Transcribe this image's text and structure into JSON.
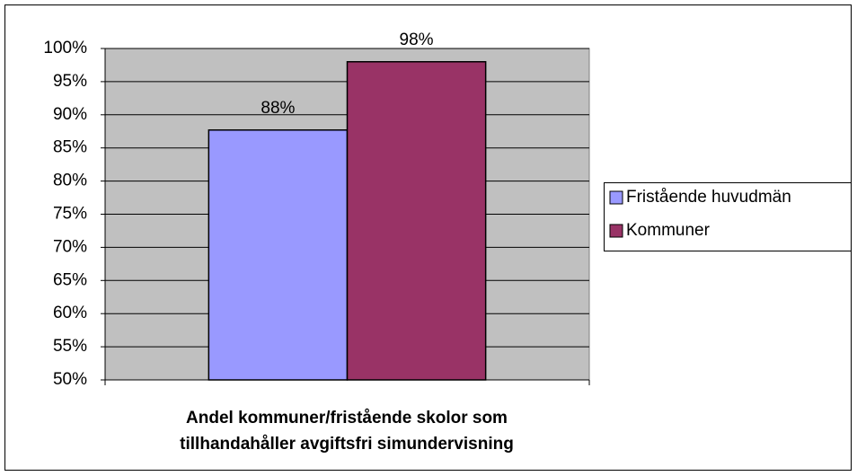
{
  "chart_data": {
    "type": "bar",
    "categories": [
      null
    ],
    "series": [
      {
        "name": "Fristående huvudmän",
        "color": "#9999ff",
        "values": [
          87.7
        ],
        "value_labels": [
          "88%"
        ]
      },
      {
        "name": "Kommuner",
        "color": "#993366",
        "values": [
          98
        ],
        "value_labels": [
          "98%"
        ]
      }
    ],
    "xlabel": [
      "Andel kommuner/fristående skolor som",
      "tillhandahåller avgiftsfri simundervisning"
    ],
    "ylim": [
      50,
      100
    ],
    "yticks": [
      {
        "value": 50,
        "label": "50%"
      },
      {
        "value": 55,
        "label": "55%"
      },
      {
        "value": 60,
        "label": "60%"
      },
      {
        "value": 65,
        "label": "65%"
      },
      {
        "value": 70,
        "label": "70%"
      },
      {
        "value": 75,
        "label": "75%"
      },
      {
        "value": 80,
        "label": "80%"
      },
      {
        "value": 85,
        "label": "85%"
      },
      {
        "value": 90,
        "label": "90%"
      },
      {
        "value": 95,
        "label": "95%"
      },
      {
        "value": 100,
        "label": "100%"
      }
    ],
    "grid": true,
    "plot_background": "#c0c0c0",
    "legend": "right"
  }
}
